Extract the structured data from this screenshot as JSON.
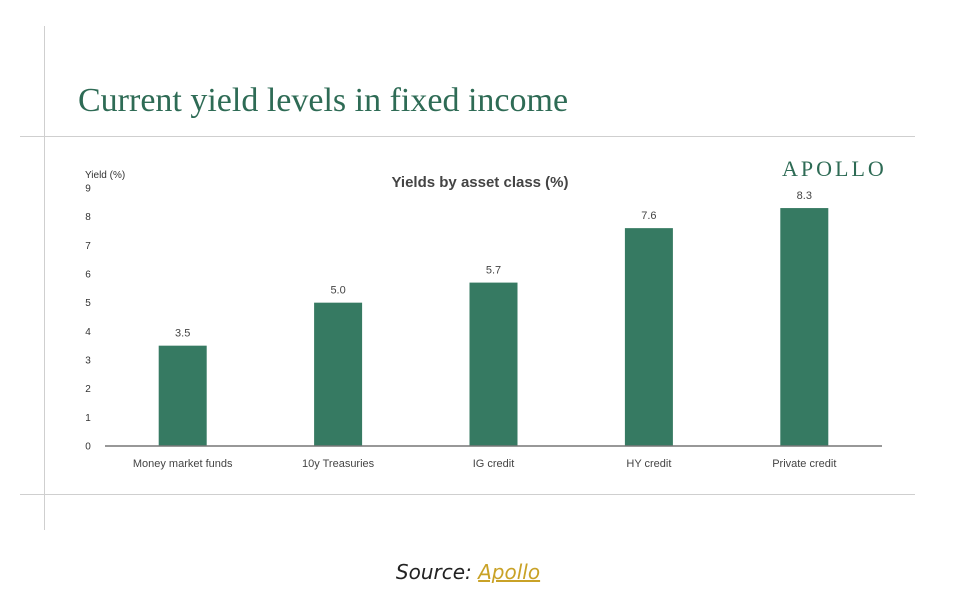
{
  "header": {
    "title": "Current yield levels in fixed income",
    "brand": "APOLLO"
  },
  "source": {
    "prefix": "Source:",
    "link_text": "Apollo"
  },
  "colors": {
    "bar": "#367a62",
    "title": "#2e6b55",
    "source_link": "#c9a227"
  },
  "chart_data": {
    "type": "bar",
    "title": "Yields by asset class (%)",
    "ylabel": "Yield (%)",
    "xlabel": "",
    "categories": [
      "Money market funds",
      "10y Treasuries",
      "IG credit",
      "HY credit",
      "Private credit"
    ],
    "values": [
      3.5,
      5.0,
      5.7,
      7.6,
      8.3
    ],
    "data_labels": [
      "3.5",
      "5.0",
      "5.7",
      "7.6",
      "8.3"
    ],
    "ylim": [
      0,
      9
    ],
    "yticks": [
      "0",
      "1",
      "2",
      "3",
      "4",
      "5",
      "6",
      "7",
      "8",
      "9"
    ],
    "grid": false,
    "legend": "none"
  }
}
